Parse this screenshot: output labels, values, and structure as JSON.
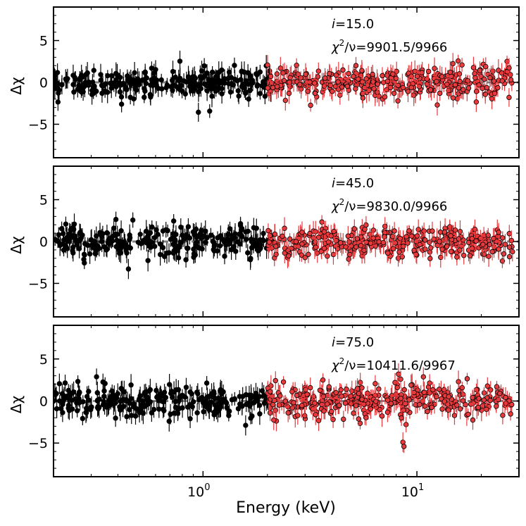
{
  "chart_data": {
    "type": "scatter",
    "xlabel": "Energy (keV)",
    "xscale": "log",
    "xlim": [
      0.2,
      30
    ],
    "x_major_ticks": [
      {
        "value": 1,
        "label": "10",
        "exp": "0"
      },
      {
        "value": 10,
        "label": "10",
        "exp": "1"
      }
    ],
    "y_symbol": "Δχ",
    "ylim": [
      -9,
      9
    ],
    "y_ticks": [
      {
        "value": 5,
        "label": "5"
      },
      {
        "value": 0,
        "label": "0"
      },
      {
        "value": -5,
        "label": "−5"
      }
    ],
    "reference_line": 0,
    "colors": {
      "low_energy_series": "#000000",
      "high_energy_series": "#e8393c",
      "reference_line": "#808080"
    },
    "series_names": [
      "low-energy residuals (black)",
      "high-energy residuals (red)"
    ],
    "panels": [
      {
        "inclination_label": "i",
        "inclination": "=15.0",
        "chi_label": "χ",
        "chi_sup": "2",
        "chi_rest": "/ν=9901.5/9966",
        "low_energy": {
          "x_range": [
            0.2,
            2.1
          ],
          "scatter_sigma": 0.85,
          "n_points": 260
        },
        "high_energy": {
          "x_range": [
            2.0,
            28
          ],
          "scatter_sigma": 0.95,
          "n_points": 340
        },
        "features": []
      },
      {
        "inclination_label": "i",
        "inclination": "=45.0",
        "chi_label": "χ",
        "chi_sup": "2",
        "chi_rest": "/ν=9830.0/9966",
        "low_energy": {
          "x_range": [
            0.2,
            2.1
          ],
          "scatter_sigma": 0.85,
          "n_points": 260
        },
        "high_energy": {
          "x_range": [
            2.0,
            28
          ],
          "scatter_sigma": 0.95,
          "n_points": 340
        },
        "features": []
      },
      {
        "inclination_label": "i",
        "inclination": "=75.0",
        "chi_label": "χ",
        "chi_sup": "2",
        "chi_rest": "/ν=10411.6/9967",
        "low_energy": {
          "x_range": [
            0.2,
            2.1
          ],
          "scatter_sigma": 0.9,
          "n_points": 260
        },
        "high_energy": {
          "x_range": [
            2.0,
            28
          ],
          "scatter_sigma": 1.0,
          "n_points": 340
        },
        "features": [
          {
            "x": 8.2,
            "y": 3.2
          },
          {
            "x": 8.4,
            "y": 2.6
          },
          {
            "x": 8.6,
            "y": -4.9
          },
          {
            "x": 8.7,
            "y": -5.4
          },
          {
            "x": 8.9,
            "y": -2.8
          },
          {
            "x": 7.9,
            "y": 2.2
          },
          {
            "x": 8.1,
            "y": 1.6
          }
        ]
      }
    ]
  }
}
